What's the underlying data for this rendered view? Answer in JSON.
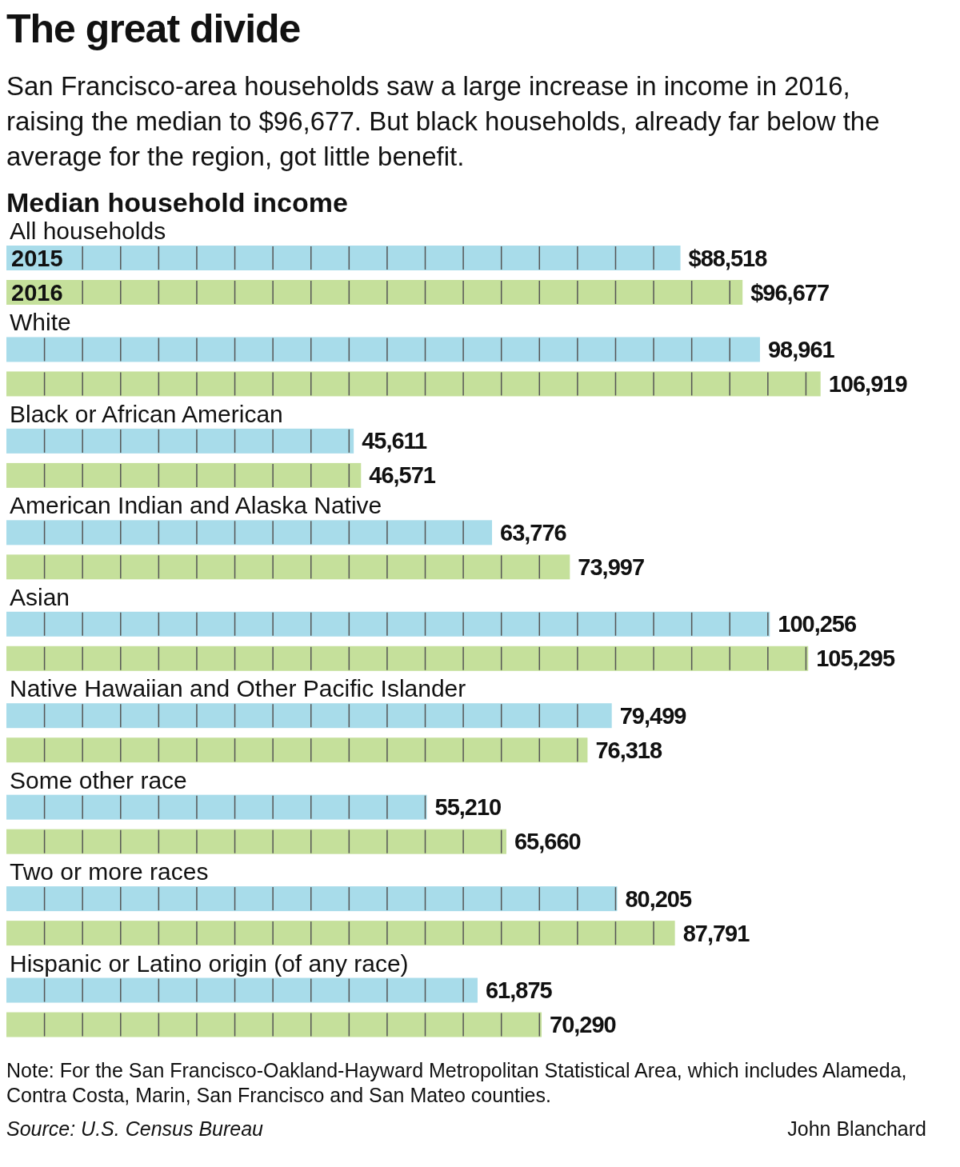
{
  "chart_data": {
    "type": "bar",
    "orientation": "horizontal",
    "title": "The great divide",
    "subtitle": "San Francisco-area households saw a large increase in income in 2016, raising the median to $96,677. But black households, already far below the average for the region, got little benefit.",
    "xlabel": "Median household income",
    "categories": [
      "All households",
      "White",
      "Black or African American",
      "American Indian and Alaska Native",
      "Asian",
      "Native Hawaiian and Other Pacific Islander",
      "Some other race",
      "Two or more races",
      "Hispanic or Latino origin (of any race)"
    ],
    "series": [
      {
        "name": "2015",
        "color": "#a8dcea",
        "values": [
          88518,
          98961,
          45611,
          63776,
          100256,
          79499,
          55210,
          80205,
          61875
        ],
        "value_labels": [
          "$88,518",
          "98,961",
          "45,611",
          "63,776",
          "100,256",
          "79,499",
          "55,210",
          "80,205",
          "61,875"
        ]
      },
      {
        "name": "2016",
        "color": "#c5e09b",
        "values": [
          96677,
          106919,
          46571,
          73997,
          105295,
          76318,
          65660,
          87791,
          70290
        ],
        "value_labels": [
          "$96,677",
          "106,919",
          "46,571",
          "73,997",
          "105,295",
          "76,318",
          "65,660",
          "87,791",
          "70,290"
        ]
      }
    ],
    "tick_labels": false,
    "legend": "top left",
    "annotations": [
      "Note: For the San Francisco-Oakland-Hayward Metropolitan Statistical Area, which includes Alameda, Contra Costa, Marin, San Francisco and San Mateo counties.",
      "Source: U.S. Census Bureau",
      "John Blanchard"
    ]
  }
}
